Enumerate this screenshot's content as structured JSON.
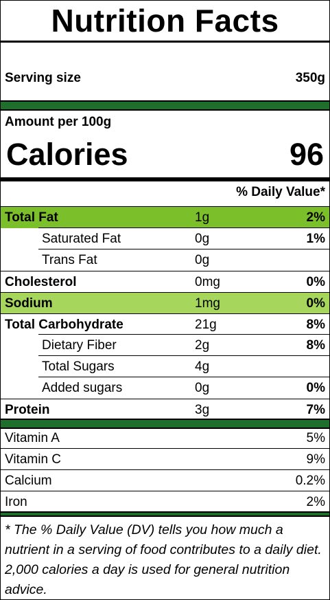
{
  "title": "Nutrition Facts",
  "serving": {
    "label": "Serving size",
    "value": "350g"
  },
  "amount_per": "Amount per 100g",
  "calories": {
    "label": "Calories",
    "value": "96"
  },
  "daily_value_header": "% Daily Value*",
  "nutrients": [
    {
      "name": "Total Fat",
      "amount": "1g",
      "dv": "2%"
    },
    {
      "name": "Saturated Fat",
      "amount": "0g",
      "dv": "1%"
    },
    {
      "name": "Trans Fat",
      "amount": "0g",
      "dv": ""
    },
    {
      "name": "Cholesterol",
      "amount": "0mg",
      "dv": "0%"
    },
    {
      "name": "Sodium",
      "amount": "1mg",
      "dv": "0%"
    },
    {
      "name": "Total Carbohydrate",
      "amount": "21g",
      "dv": "8%"
    },
    {
      "name": "Dietary Fiber",
      "amount": "2g",
      "dv": "8%"
    },
    {
      "name": "Total Sugars",
      "amount": "4g",
      "dv": ""
    },
    {
      "name": "Added sugars",
      "amount": "0g",
      "dv": "0%"
    },
    {
      "name": "Protein",
      "amount": "3g",
      "dv": "7%"
    }
  ],
  "vitamins": [
    {
      "name": "Vitamin A",
      "dv": "5%"
    },
    {
      "name": "Vitamin C",
      "dv": "9%"
    },
    {
      "name": "Calcium",
      "dv": "0.2%"
    },
    {
      "name": "Iron",
      "dv": "2%"
    }
  ],
  "footnote": "* The % Daily Value (DV) tells you how much a nutrient in a serving of food contributes to a daily diet. 2,000 calories a day is used for general nutrition advice.",
  "colors": {
    "bar_green": "#1d6f2b",
    "highlight_fat": "#7bbf2a",
    "highlight_sodium": "#a6d65c"
  }
}
